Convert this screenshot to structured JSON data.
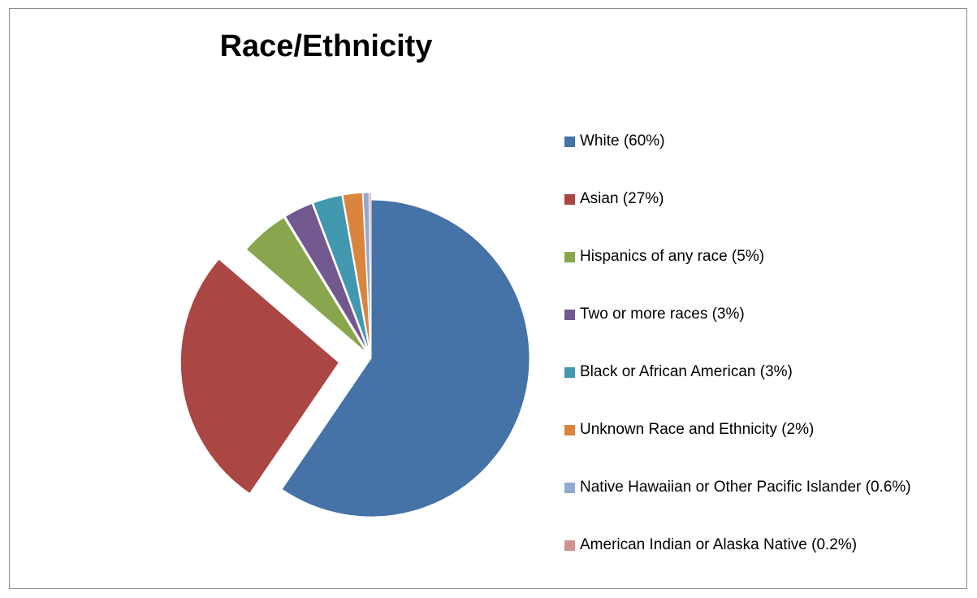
{
  "chart_data": {
    "type": "pie",
    "title": "Race/Ethnicity",
    "legend_position": "right",
    "exploded_slices": [
      "Asian"
    ],
    "slices": [
      {
        "label": "White (60%)",
        "value": 60,
        "color": "#4572a7"
      },
      {
        "label": "Asian (27%)",
        "value": 27,
        "color": "#aa4643"
      },
      {
        "label": "Hispanics of any race (5%)",
        "value": 5,
        "color": "#89a54e"
      },
      {
        "label": "Two or more races (3%)",
        "value": 3,
        "color": "#71588f"
      },
      {
        "label": "Black or African American (3%)",
        "value": 3,
        "color": "#4198af"
      },
      {
        "label": "Unknown Race and Ethnicity (2%)",
        "value": 2,
        "color": "#db843d"
      },
      {
        "label": "Native Hawaiian or Other Pacific Islander (0.6%)",
        "value": 0.6,
        "color": "#93a9cf"
      },
      {
        "label": "American Indian or Alaska Native (0.2%)",
        "value": 0.2,
        "color": "#d19392"
      }
    ]
  }
}
